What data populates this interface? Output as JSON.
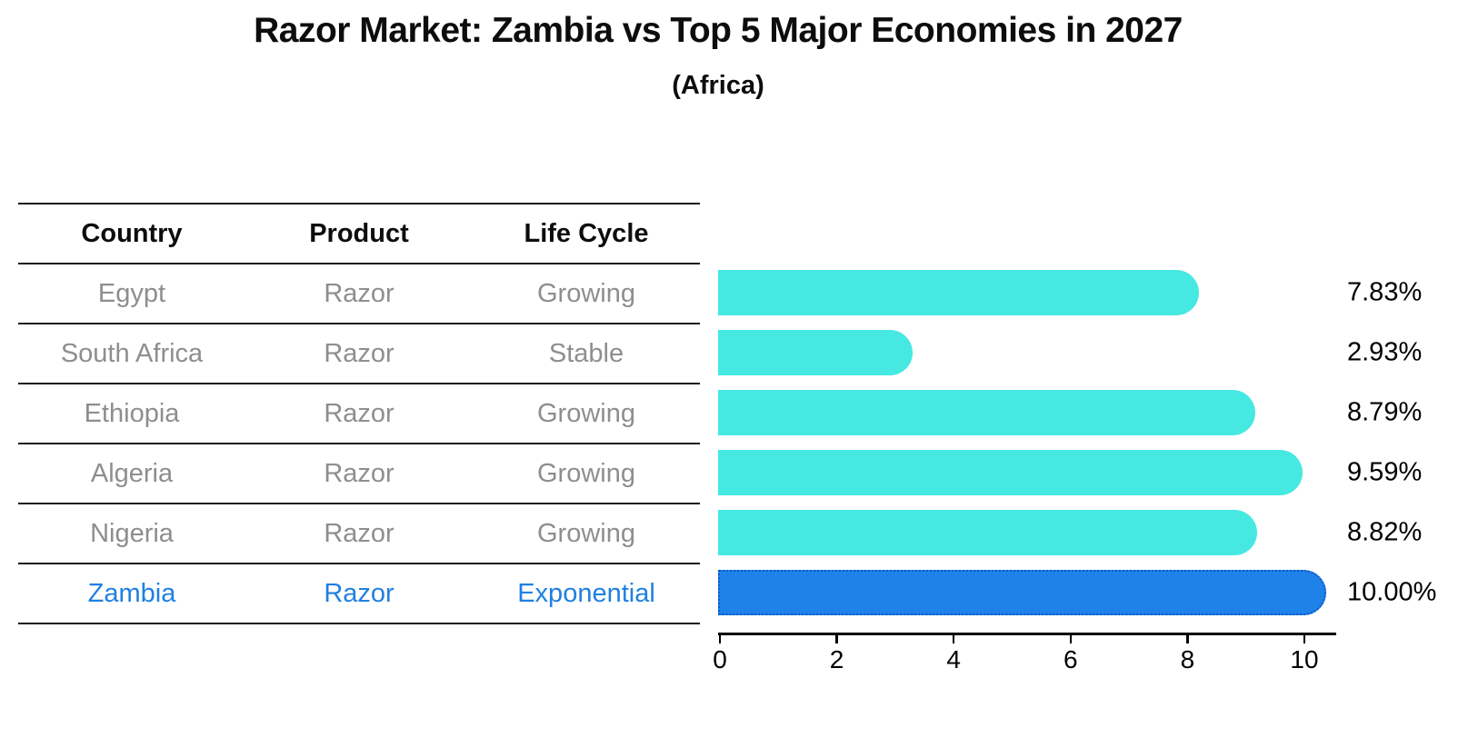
{
  "title": "Razor Market: Zambia vs Top 5 Major Economies in 2027",
  "subtitle": "(Africa)",
  "colors": {
    "bar_default": "#46E8E2",
    "bar_highlight": "#1E82E8",
    "highlight_border": "#1057C8",
    "highlight_text": "#2080E0",
    "row_text": "#8E8E8E",
    "line": "#1A1A1A"
  },
  "table": {
    "headers": [
      "Country",
      "Product",
      "Life Cycle"
    ],
    "rows": [
      {
        "country": "Egypt",
        "product": "Razor",
        "life_cycle": "Growing",
        "highlight": false
      },
      {
        "country": "South Africa",
        "product": "Razor",
        "life_cycle": "Stable",
        "highlight": false
      },
      {
        "country": "Ethiopia",
        "product": "Razor",
        "life_cycle": "Growing",
        "highlight": false
      },
      {
        "country": "Algeria",
        "product": "Razor",
        "life_cycle": "Growing",
        "highlight": false
      },
      {
        "country": "Nigeria",
        "product": "Razor",
        "life_cycle": "Growing",
        "highlight": false
      },
      {
        "country": "Zambia",
        "product": "Razor",
        "life_cycle": "Exponential",
        "highlight": true
      }
    ]
  },
  "chart_data": {
    "type": "bar",
    "orientation": "horizontal",
    "title": "Razor Market: Zambia vs Top 5 Major Economies in 2027",
    "subtitle": "(Africa)",
    "categories": [
      "Egypt",
      "South Africa",
      "Ethiopia",
      "Algeria",
      "Nigeria",
      "Zambia"
    ],
    "values": [
      7.83,
      2.93,
      8.79,
      9.59,
      8.82,
      10.0
    ],
    "value_labels": [
      "7.83%",
      "2.93%",
      "8.79%",
      "9.59%",
      "8.82%",
      "10.00%"
    ],
    "highlight_index": 5,
    "xlim": [
      0,
      10.55
    ],
    "xticks": [
      0,
      2,
      4,
      6,
      8,
      10
    ],
    "grid": false,
    "legend": false
  }
}
